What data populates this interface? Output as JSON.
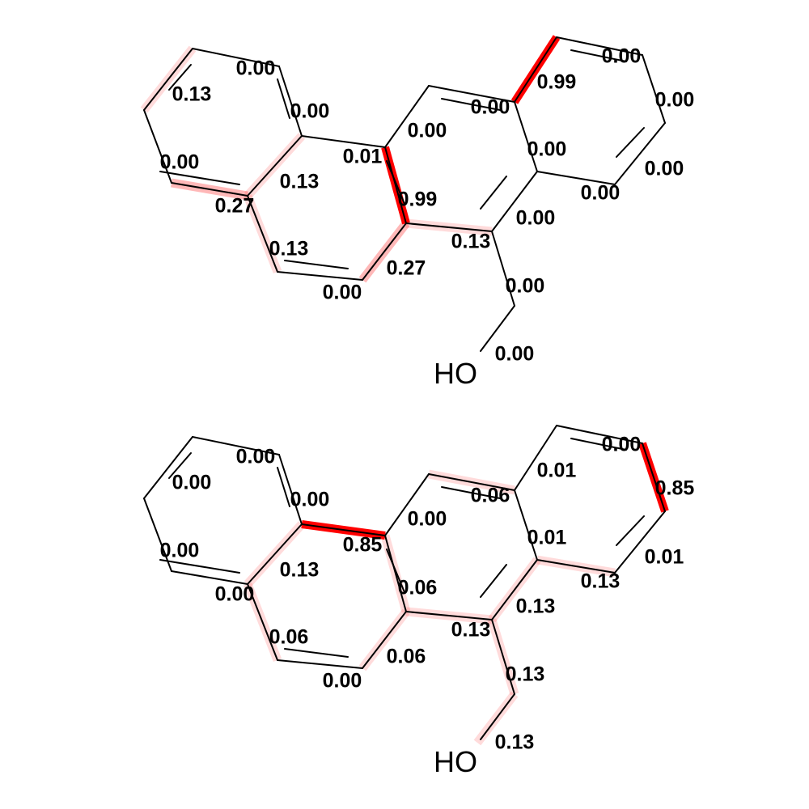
{
  "highlight_color": "#ff0000",
  "molecules": [
    {
      "atom_label": "HO",
      "weights": [
        "0.00",
        "0.13",
        "0.00",
        "0.00",
        "0.27",
        "0.13",
        "0.13",
        "0.00",
        "0.27",
        "0.01",
        "0.99",
        "0.00",
        "0.00",
        "0.99",
        "0.00",
        "0.00",
        "0.00",
        "0.00",
        "0.00",
        "0.00",
        "0.13",
        "0.00",
        "0.00"
      ],
      "bond_weights": [
        0.13,
        0.0,
        0.0,
        0.0,
        0.0,
        0.27,
        0.13,
        0.13,
        0.0,
        0.27,
        0.01,
        0.99,
        0.0,
        0.0,
        0.99,
        0.0,
        0.0,
        0.0,
        0.0,
        0.0,
        0.0,
        0.13,
        0.0,
        0.0
      ]
    },
    {
      "atom_label": "HO",
      "weights": [
        "0.00",
        "0.00",
        "0.00",
        "0.00",
        "0.00",
        "0.13",
        "0.06",
        "0.00",
        "0.06",
        "0.85",
        "0.06",
        "0.00",
        "0.06",
        "0.01",
        "0.00",
        "0.85",
        "0.01",
        "0.13",
        "0.01",
        "0.13",
        "0.13",
        "0.13",
        "0.13"
      ],
      "bond_weights": [
        0.0,
        0.0,
        0.0,
        0.0,
        0.0,
        0.0,
        0.13,
        0.06,
        0.0,
        0.06,
        0.85,
        0.06,
        0.0,
        0.06,
        0.01,
        0.0,
        0.85,
        0.01,
        0.13,
        0.01,
        0.13,
        0.13,
        0.13,
        0.13
      ]
    }
  ]
}
